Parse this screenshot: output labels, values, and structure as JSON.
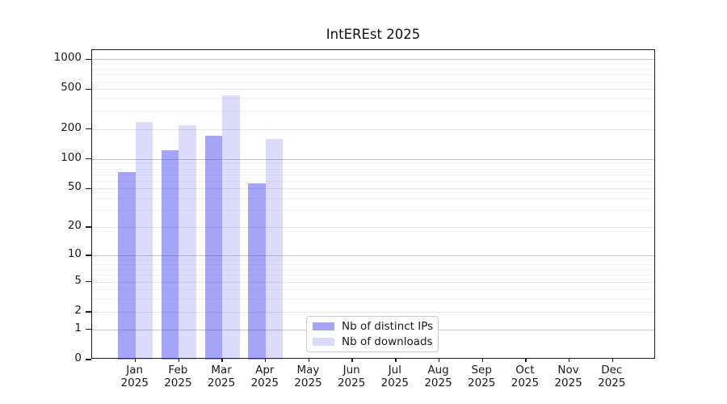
{
  "chart_data": {
    "type": "bar",
    "title": "IntEREst 2025",
    "xlabel": "",
    "ylabel": "",
    "yscale": "log1p",
    "grid": true,
    "yticks": [
      0,
      1,
      2,
      5,
      10,
      20,
      50,
      100,
      200,
      500,
      1000
    ],
    "ylim": [
      0,
      1215
    ],
    "year": "2025",
    "categories": [
      "Jan",
      "Feb",
      "Mar",
      "Apr",
      "May",
      "Jun",
      "Jul",
      "Aug",
      "Sep",
      "Oct",
      "Nov",
      "Dec"
    ],
    "series": [
      {
        "name": "Nb of distinct IPs",
        "color": "rgba(40,40,235,0.42)",
        "color_hex_on_white": "#a7a7f1",
        "values": [
          73,
          123,
          172,
          57,
          0,
          0,
          0,
          0,
          0,
          0,
          0,
          0
        ]
      },
      {
        "name": "Nb of downloads",
        "color": "rgba(40,40,235,0.17)",
        "color_hex_on_white": "#dbdbf9",
        "values": [
          237,
          220,
          438,
          158,
          0,
          0,
          0,
          0,
          0,
          0,
          0,
          0
        ]
      }
    ],
    "legend_position": "lower center"
  }
}
